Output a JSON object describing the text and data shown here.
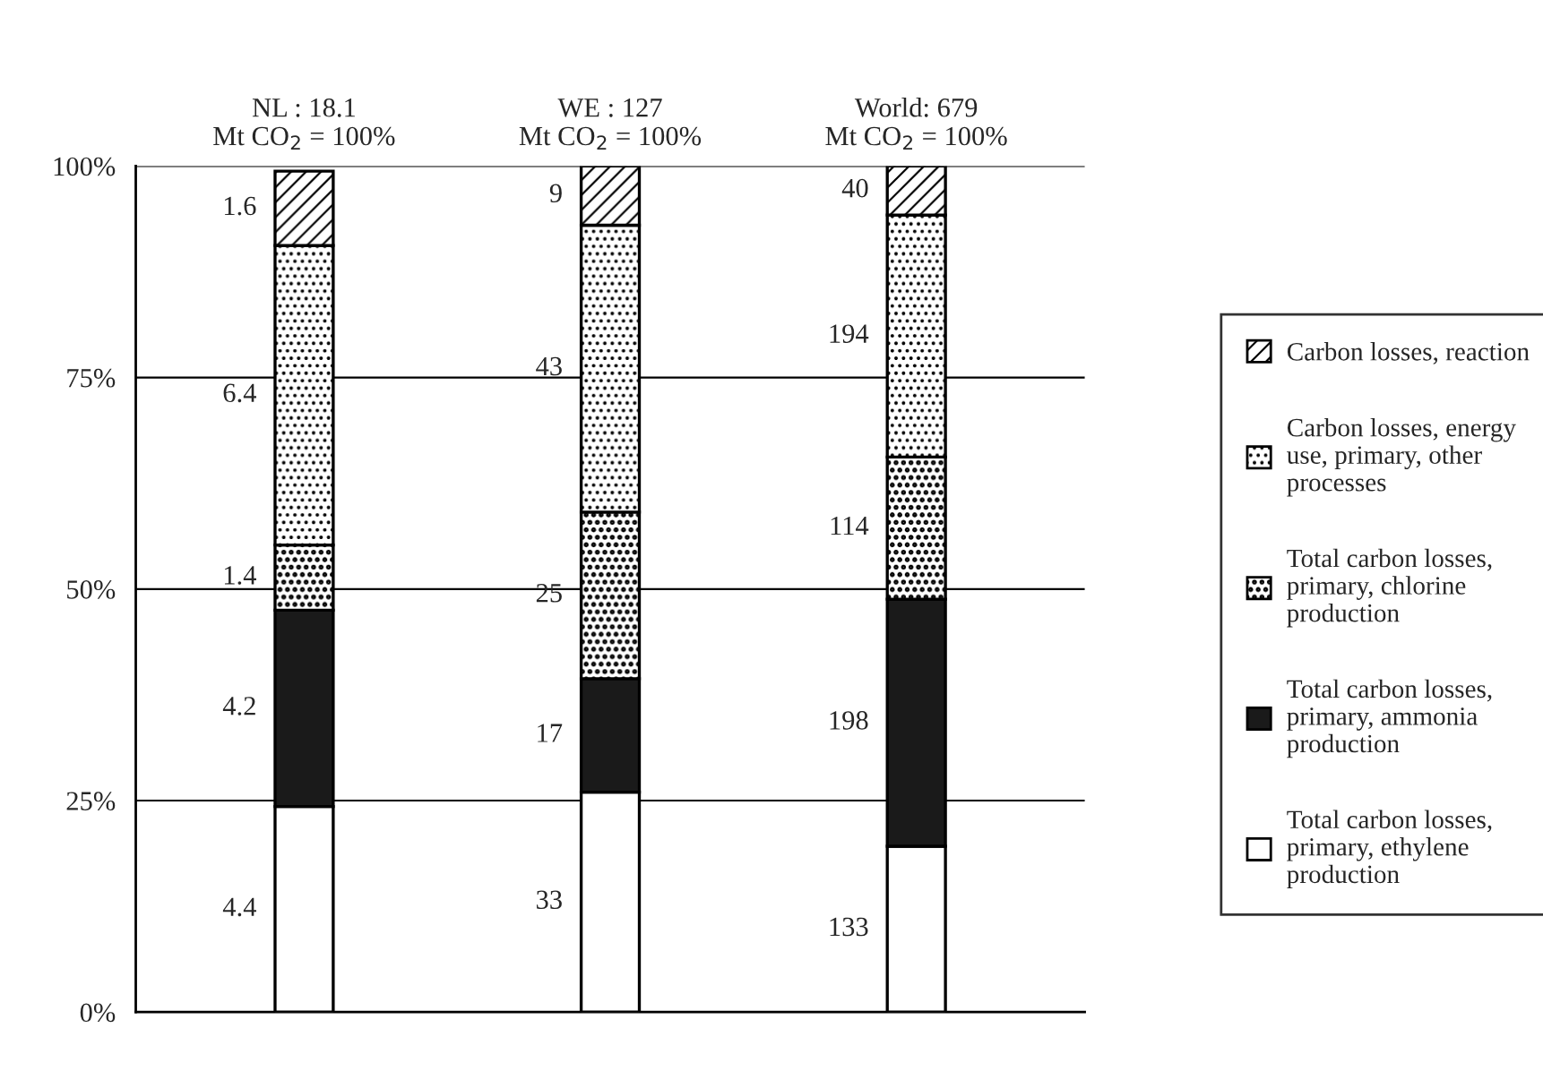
{
  "chart_data": {
    "type": "bar",
    "stacked": true,
    "categories": [
      "NL : 18.1\nMt CO$_{2}$ = 100%",
      "WE : 127\nMt CO$_{2}$ = 100%",
      "World: 679\nMt CO$_{2}$ = 100%"
    ],
    "series": [
      {
        "name": "Total carbon losses,\nprimary, ethylene\nproduction",
        "color": "#ffffff",
        "values": [
          24.3,
          26.0,
          19.6
        ]
      },
      {
        "name": "Total carbon losses,\nprimary, ammonia\nproduction",
        "color": "#1a1a1a",
        "values": [
          23.2,
          13.4,
          29.2
        ]
      },
      {
        "name": "Total carbon losses,\nprimary, chlorine\nproduction",
        "color": "#ffffff",
        "values": [
          7.7,
          19.7,
          16.8
        ]
      },
      {
        "name": "Carbon losses, energy\nuse, primary, other\nprocesses",
        "color": "#ffffff",
        "values": [
          35.4,
          33.9,
          28.6
        ]
      },
      {
        "name": "Carbon losses, reaction",
        "color": "#ffffff",
        "values": [
          8.8,
          7.0,
          5.8
        ]
      }
    ],
    "annotations": [
      "4.4",
      "4.2",
      "1.4",
      "6.4",
      "1.6",
      "33",
      "17",
      "25",
      "43",
      "9",
      "133",
      "198",
      "114",
      "194",
      "40"
    ],
    "ylim": [
      0,
      100
    ],
    "yticks": [
      {
        "value": 0,
        "label": "0%"
      },
      {
        "value": 25,
        "label": "25%"
      },
      {
        "value": 50,
        "label": "50%"
      },
      {
        "value": 75,
        "label": "75%"
      },
      {
        "value": 100,
        "label": "100%"
      }
    ],
    "grid": "y",
    "legend": "right"
  }
}
